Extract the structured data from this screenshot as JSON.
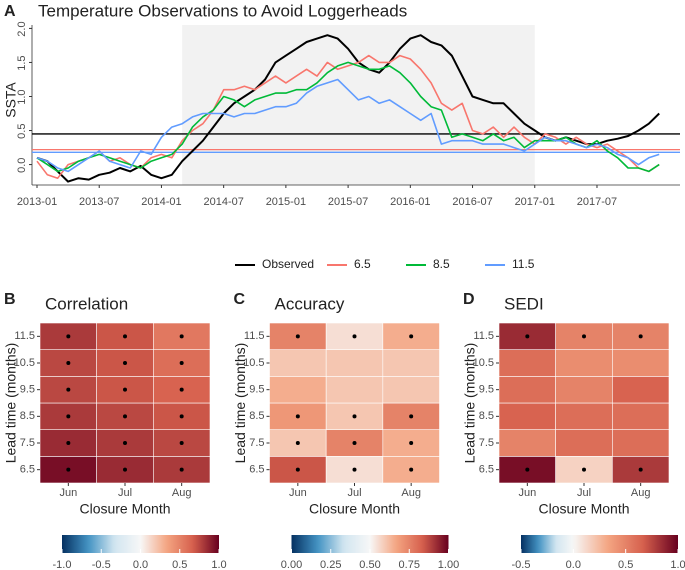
{
  "chart_data": [
    {
      "type": "line",
      "label": "A",
      "title": "Temperature Observations to Avoid Loggerheads",
      "y_label": "SSTA",
      "x": [
        "2013-01",
        "2013-02",
        "2013-03",
        "2013-04",
        "2013-05",
        "2013-06",
        "2013-07",
        "2013-08",
        "2013-09",
        "2013-10",
        "2013-11",
        "2013-12",
        "2014-01",
        "2014-02",
        "2014-03",
        "2014-04",
        "2014-05",
        "2014-06",
        "2014-07",
        "2014-08",
        "2014-09",
        "2014-10",
        "2014-11",
        "2014-12",
        "2015-01",
        "2015-02",
        "2015-03",
        "2015-04",
        "2015-05",
        "2015-06",
        "2015-07",
        "2015-08",
        "2015-09",
        "2015-10",
        "2015-11",
        "2015-12",
        "2016-01",
        "2016-02",
        "2016-03",
        "2016-04",
        "2016-05",
        "2016-06",
        "2016-07",
        "2016-08",
        "2016-09",
        "2016-10",
        "2016-11",
        "2016-12",
        "2017-01",
        "2017-02",
        "2017-03",
        "2017-04",
        "2017-05",
        "2017-06",
        "2017-07",
        "2017-08",
        "2017-09",
        "2017-10",
        "2017-11",
        "2017-12",
        "2018-01"
      ],
      "xticks": [
        "2013-01",
        "2013-07",
        "2014-01",
        "2014-07",
        "2015-01",
        "2015-07",
        "2016-01",
        "2016-07",
        "2017-01",
        "2017-07"
      ],
      "ylim": [
        -0.3,
        2.05
      ],
      "yticks": [
        {
          "value": 0,
          "label": "0.0"
        },
        0.5,
        {
          "value": 1,
          "label": "1.0"
        },
        1.5,
        {
          "value": 2,
          "label": "2.0"
        }
      ],
      "shaded_range": [
        "2014-03",
        "2017-01"
      ],
      "hlines": [
        {
          "value": 0.45,
          "color": "#000000"
        },
        {
          "value": 0.22,
          "color": "#f8766d"
        },
        {
          "value": 0.18,
          "color": "#619cff"
        }
      ],
      "series": [
        {
          "name": "Observed",
          "color": "#000000",
          "values": [
            0.1,
            0.05,
            -0.1,
            -0.25,
            -0.2,
            -0.22,
            -0.15,
            -0.12,
            -0.05,
            -0.1,
            -0.02,
            -0.15,
            -0.2,
            -0.15,
            0.05,
            0.2,
            0.35,
            0.55,
            0.75,
            0.9,
            1.0,
            1.1,
            1.25,
            1.5,
            1.6,
            1.7,
            1.8,
            1.85,
            1.9,
            1.85,
            1.7,
            1.5,
            1.4,
            1.35,
            1.5,
            1.7,
            1.85,
            1.9,
            1.8,
            1.75,
            1.6,
            1.3,
            1.0,
            0.95,
            0.9,
            0.9,
            0.75,
            0.6,
            0.5,
            0.4,
            0.35,
            0.4,
            0.35,
            0.3,
            0.3,
            0.35,
            0.38,
            0.42,
            0.5,
            0.6,
            0.75
          ]
        },
        {
          "name": "6.5",
          "color": "#f8766d",
          "values": [
            0.05,
            -0.15,
            -0.2,
            0.0,
            0.05,
            0.1,
            0.2,
            0.05,
            0.1,
            0.0,
            -0.05,
            0.1,
            0.15,
            0.1,
            0.35,
            0.5,
            0.6,
            0.8,
            1.1,
            1.1,
            1.15,
            1.1,
            1.2,
            1.3,
            1.2,
            1.3,
            1.4,
            1.3,
            1.5,
            1.4,
            1.45,
            1.5,
            1.6,
            1.5,
            1.5,
            1.6,
            1.55,
            1.4,
            1.2,
            0.9,
            0.8,
            0.9,
            0.5,
            0.45,
            0.55,
            0.4,
            0.55,
            0.4,
            0.3,
            0.45,
            0.4,
            0.3,
            0.4,
            0.3,
            0.25,
            0.3,
            0.2,
            0.1,
            -0.05,
            -0.1,
            0.0
          ]
        },
        {
          "name": "8.5",
          "color": "#00ba38",
          "values": [
            0.1,
            0.0,
            -0.1,
            -0.05,
            0.05,
            0.1,
            0.15,
            0.1,
            0.05,
            0.0,
            -0.05,
            0.05,
            0.1,
            0.15,
            0.3,
            0.55,
            0.7,
            0.8,
            1.0,
            0.95,
            0.85,
            0.95,
            1.0,
            1.05,
            1.05,
            1.1,
            1.1,
            1.2,
            1.35,
            1.45,
            1.5,
            1.45,
            1.4,
            1.4,
            1.45,
            1.35,
            1.2,
            1.0,
            0.85,
            0.8,
            0.4,
            0.45,
            0.4,
            0.35,
            0.45,
            0.35,
            0.4,
            0.25,
            0.35,
            0.35,
            0.35,
            0.4,
            0.3,
            0.25,
            0.35,
            0.2,
            0.1,
            -0.05,
            -0.05,
            -0.1,
            0.0
          ]
        },
        {
          "name": "11.5",
          "color": "#619cff",
          "values": [
            0.1,
            0.05,
            -0.05,
            -0.1,
            0.0,
            0.1,
            0.2,
            0.05,
            0.0,
            -0.05,
            0.2,
            0.15,
            0.4,
            0.55,
            0.6,
            0.7,
            0.75,
            0.75,
            0.75,
            0.7,
            0.75,
            0.75,
            0.8,
            0.85,
            0.85,
            0.9,
            1.05,
            1.15,
            1.2,
            1.25,
            1.1,
            0.95,
            1.0,
            0.9,
            0.95,
            0.85,
            0.75,
            0.65,
            0.75,
            0.3,
            0.35,
            0.35,
            0.35,
            0.3,
            0.3,
            0.3,
            0.25,
            0.2,
            0.3,
            0.4,
            0.35,
            0.35,
            0.3,
            0.25,
            0.3,
            0.25,
            0.15,
            0.1,
            0.0,
            0.1,
            0.15
          ]
        }
      ]
    },
    {
      "type": "heatmap",
      "label": "B",
      "title": "Correlation",
      "x_label": "Closure Month",
      "y_label": "Lead time (months)",
      "x_categories": [
        "Jun",
        "Jul",
        "Aug"
      ],
      "y_categories": [
        "6.5",
        "7.5",
        "8.5",
        "9.5",
        "10.5",
        "11.5"
      ],
      "values": [
        [
          0.95,
          0.85,
          0.8
        ],
        [
          0.85,
          0.8,
          0.75
        ],
        [
          0.8,
          0.75,
          0.7
        ],
        [
          0.75,
          0.7,
          0.65
        ],
        [
          0.75,
          0.7,
          0.6
        ],
        [
          0.8,
          0.7,
          0.55
        ]
      ],
      "significant": [
        [
          true,
          true,
          true
        ],
        [
          true,
          true,
          true
        ],
        [
          true,
          true,
          true
        ],
        [
          true,
          true,
          true
        ],
        [
          true,
          true,
          true
        ],
        [
          true,
          true,
          true
        ]
      ],
      "clim": [
        -1,
        1
      ],
      "cmid": 0,
      "colors": [
        "#053061",
        "#4393c3",
        "#d1e5f0",
        "#f7f7f7",
        "#f4a582",
        "#d6604d",
        "#67001f"
      ],
      "cticks": [
        {
          "value": -1,
          "label": "-1.0"
        },
        -0.5,
        {
          "value": 0,
          "label": "0.0"
        },
        0.5,
        {
          "value": 1,
          "label": "1.0"
        }
      ]
    },
    {
      "type": "heatmap",
      "label": "C",
      "title": "Accuracy",
      "x_label": "Closure Month",
      "y_label": "Lead time (months)",
      "x_categories": [
        "Jun",
        "Jul",
        "Aug"
      ],
      "y_categories": [
        "6.5",
        "7.5",
        "8.5",
        "9.5",
        "10.5",
        "11.5"
      ],
      "values": [
        [
          0.85,
          0.55,
          0.65
        ],
        [
          0.6,
          0.75,
          0.65
        ],
        [
          0.7,
          0.6,
          0.75
        ],
        [
          0.65,
          0.6,
          0.6
        ],
        [
          0.6,
          0.6,
          0.6
        ],
        [
          0.75,
          0.55,
          0.65
        ]
      ],
      "significant": [
        [
          true,
          true,
          true
        ],
        [
          true,
          true,
          true
        ],
        [
          true,
          true,
          true
        ],
        [
          false,
          false,
          false
        ],
        [
          false,
          false,
          false
        ],
        [
          true,
          true,
          true
        ]
      ],
      "clim": [
        0,
        1
      ],
      "cmid": 0.5,
      "colors": [
        "#053061",
        "#4393c3",
        "#d1e5f0",
        "#f7f7f7",
        "#f4a582",
        "#d6604d",
        "#67001f"
      ],
      "cticks": [
        {
          "value": 0,
          "label": "0.00"
        },
        0.25,
        {
          "value": 0.5,
          "label": "0.50"
        },
        0.75,
        {
          "value": 1,
          "label": "1.00"
        }
      ]
    },
    {
      "type": "heatmap",
      "label": "D",
      "title": "SEDI",
      "x_label": "Closure Month",
      "y_label": "Lead time (months)",
      "x_categories": [
        "Jun",
        "Jul",
        "Aug"
      ],
      "y_categories": [
        "6.5",
        "7.5",
        "8.5",
        "9.5",
        "10.5",
        "11.5"
      ],
      "values": [
        [
          0.95,
          0.15,
          0.8
        ],
        [
          0.5,
          0.6,
          0.6
        ],
        [
          0.65,
          0.6,
          0.6
        ],
        [
          0.6,
          0.5,
          0.65
        ],
        [
          0.6,
          0.45,
          0.45
        ],
        [
          0.85,
          0.5,
          0.5
        ]
      ],
      "significant": [
        [
          true,
          true,
          true
        ],
        [
          false,
          false,
          false
        ],
        [
          false,
          false,
          false
        ],
        [
          false,
          false,
          false
        ],
        [
          false,
          false,
          false
        ],
        [
          true,
          true,
          true
        ]
      ],
      "clim": [
        -0.5,
        1
      ],
      "cmid": 0,
      "colors": [
        "#053061",
        "#4393c3",
        "#d1e5f0",
        "#f7f7f7",
        "#f4a582",
        "#d6604d",
        "#67001f"
      ],
      "cticks": [
        -0.5,
        {
          "value": 0,
          "label": "0.0"
        },
        0.5,
        {
          "value": 1,
          "label": "1.0"
        }
      ]
    }
  ]
}
